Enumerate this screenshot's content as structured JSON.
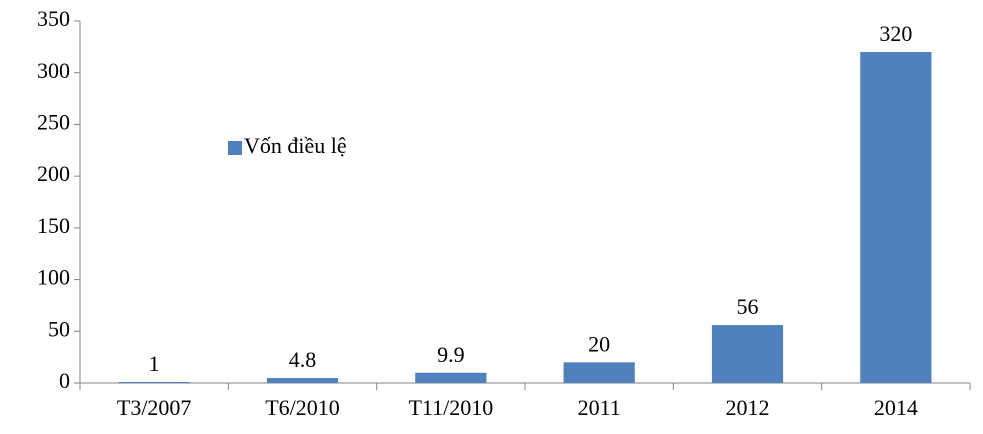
{
  "chart_data": {
    "type": "bar",
    "categories": [
      "T3/2007",
      "T6/2010",
      "T11/2010",
      "2011",
      "2012",
      "2014"
    ],
    "series": [
      {
        "name": "Vốn điều lệ",
        "color": "#4f81bd",
        "values": [
          1,
          4.8,
          9.9,
          20,
          56,
          320
        ]
      }
    ],
    "ylim": [
      0,
      350
    ],
    "yticks": [
      0,
      50,
      100,
      150,
      200,
      250,
      300,
      350
    ],
    "grid": false,
    "legend": "center left"
  }
}
